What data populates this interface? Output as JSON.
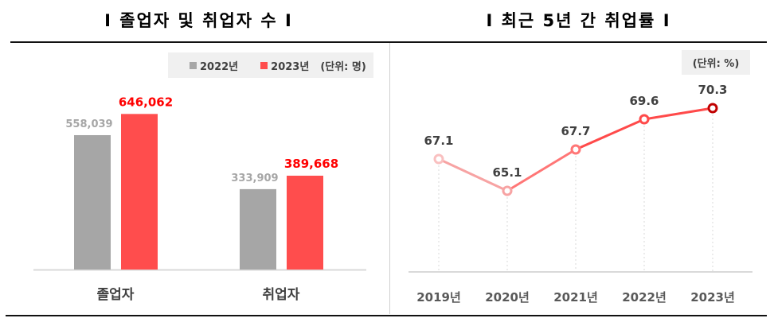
{
  "left_title": "Ⅰ  졸업자 및 취업자 수  Ⅰ",
  "right_title": "Ⅰ  최근 5년 간 취업률  Ⅰ",
  "colors": {
    "y2022": "#a6a6a6",
    "y2023": "#ff4d4d",
    "label2023": "#ff0000",
    "line_colors": [
      "#f9c0c0",
      "#f7a3a3",
      "#ff7676",
      "#ff4a4a",
      "#c00000"
    ]
  },
  "chart_data": [
    {
      "type": "bar",
      "title": "졸업자 및 취업자 수",
      "categories": [
        "졸업자",
        "취업자"
      ],
      "series": [
        {
          "name": "2022년",
          "values": [
            558039,
            333909
          ],
          "labels": [
            "558,039",
            "333,909"
          ]
        },
        {
          "name": "2023년",
          "values": [
            646062,
            389668
          ],
          "labels": [
            "646,062",
            "389,668"
          ]
        }
      ],
      "unit": "(단위: 명)",
      "ylim": [
        0,
        700000
      ]
    },
    {
      "type": "line",
      "title": "최근 5년 간 취업률",
      "categories": [
        "2019년",
        "2020년",
        "2021년",
        "2022년",
        "2023년"
      ],
      "values": [
        67.1,
        65.1,
        67.7,
        69.6,
        70.3
      ],
      "labels": [
        "67.1",
        "65.1",
        "67.7",
        "69.6",
        "70.3"
      ],
      "unit": "(단위: %)"
    }
  ]
}
